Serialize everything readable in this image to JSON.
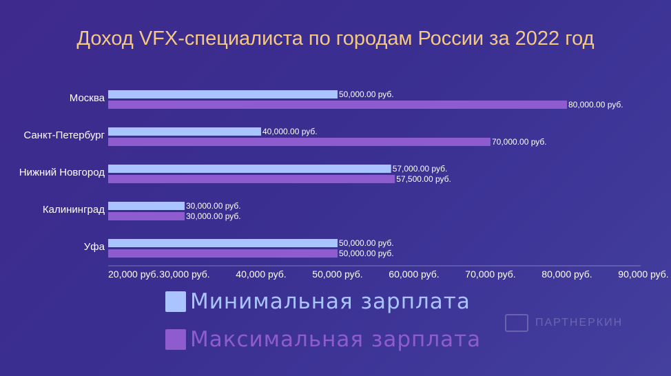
{
  "chart_data": {
    "type": "bar",
    "orientation": "horizontal",
    "title": "Доход VFX-специалиста по городам России за 2022 год",
    "categories": [
      "Москва",
      "Санкт-Петербург",
      "Нижний Новгород",
      "Калининград",
      "Уфа"
    ],
    "series": [
      {
        "name": "Минимальная зарплата",
        "color": "#a9c4ff",
        "values": [
          50000,
          40000,
          57000,
          30000,
          50000
        ],
        "labels": [
          "50,000.00 руб.",
          "40,000.00 руб.",
          "57,000.00 руб.",
          "30,000.00 руб.",
          "50,000.00 руб."
        ]
      },
      {
        "name": "Максимальная зарплата",
        "color": "#8f5cd0",
        "values": [
          80000,
          70000,
          57500,
          30000,
          50000
        ],
        "labels": [
          "80,000.00 руб.",
          "70,000.00 руб.",
          "57,500.00 руб.",
          "30,000.00 руб.",
          "50,000.00 руб."
        ]
      }
    ],
    "x_ticks": [
      20000,
      30000,
      40000,
      50000,
      60000,
      70000,
      80000,
      90000
    ],
    "x_tick_labels": [
      "20,000 руб.",
      "30,000 руб.",
      "40,000 руб.",
      "50,000 руб.",
      "60,000 руб.",
      "70,000 руб.",
      "80,000 руб.",
      "90,000 руб."
    ],
    "xlim": [
      20000,
      90000
    ],
    "legend_position": "bottom",
    "grid": false
  },
  "watermark": {
    "text": "ПАРТНЕРКИН"
  },
  "colors": {
    "title": "#f5c883",
    "text": "#ffffff",
    "legend_min_text": "#a9c4ff",
    "legend_max_text": "#8f5cd0"
  }
}
